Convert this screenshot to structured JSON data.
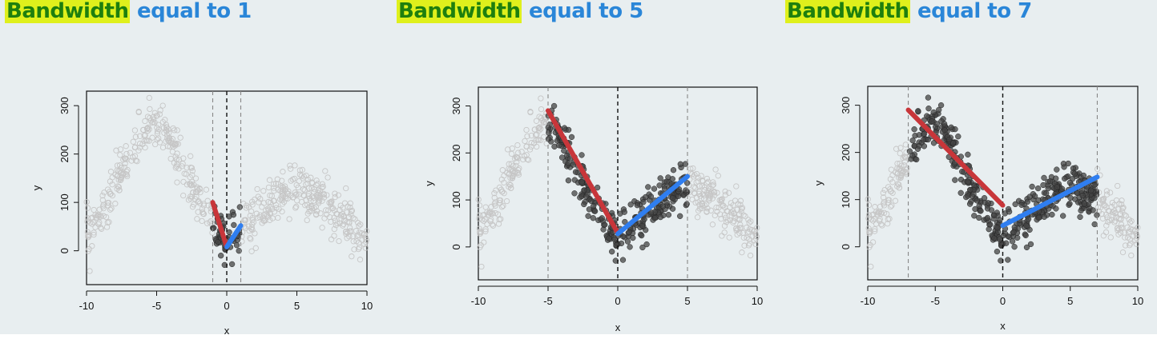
{
  "panels": [
    {
      "title_highlight": "Bandwidth",
      "title_rest": "equal to 1"
    },
    {
      "title_highlight": "Bandwidth",
      "title_rest": "equal to 5"
    },
    {
      "title_highlight": "Bandwidth",
      "title_rest": "equal to 7"
    }
  ],
  "colors": {
    "background": "#e8eef0",
    "highlight_bg": "#dff01c",
    "highlight_text": "#1e7f0e",
    "title_blue": "#2a86d8",
    "left_fit": "#c8363a",
    "right_fit": "#2f7ef0",
    "in_bandwidth_points": "#444444",
    "out_bandwidth_points": "#c6c6c6"
  },
  "chart_data": [
    {
      "type": "scatter",
      "xlabel": "x",
      "ylabel": "y",
      "xlim": [
        -10,
        10
      ],
      "ylim": [
        -70,
        330
      ],
      "xticks": [
        "-10",
        "-5",
        "0",
        "5",
        "10"
      ],
      "yticks": [
        "0",
        "100",
        "200",
        "300"
      ],
      "cutoff": 0,
      "bandwidth": 1,
      "left_fit": {
        "x": [
          -1,
          0
        ],
        "y": [
          100,
          8
        ]
      },
      "right_fit": {
        "x": [
          0,
          1
        ],
        "y": [
          8,
          52
        ]
      }
    },
    {
      "type": "scatter",
      "xlabel": "x",
      "ylabel": "y",
      "xlim": [
        -10,
        10
      ],
      "ylim": [
        -70,
        340
      ],
      "xticks": [
        "-10",
        "-5",
        "0",
        "5",
        "10"
      ],
      "yticks": [
        "0",
        "100",
        "200",
        "300"
      ],
      "cutoff": 0,
      "bandwidth": 5,
      "left_fit": {
        "x": [
          -5,
          0
        ],
        "y": [
          290,
          30
        ]
      },
      "right_fit": {
        "x": [
          0,
          5
        ],
        "y": [
          28,
          150
        ]
      }
    },
    {
      "type": "scatter",
      "xlabel": "x",
      "ylabel": "y",
      "xlim": [
        -10,
        10
      ],
      "ylim": [
        -70,
        340
      ],
      "xticks": [
        "-10",
        "-5",
        "0",
        "5",
        "10"
      ],
      "yticks": [
        "0",
        "100",
        "200",
        "300"
      ],
      "cutoff": 0,
      "bandwidth": 7,
      "left_fit": {
        "x": [
          -7,
          0
        ],
        "y": [
          290,
          88
        ]
      },
      "right_fit": {
        "x": [
          0,
          7
        ],
        "y": [
          45,
          148
        ]
      }
    }
  ]
}
